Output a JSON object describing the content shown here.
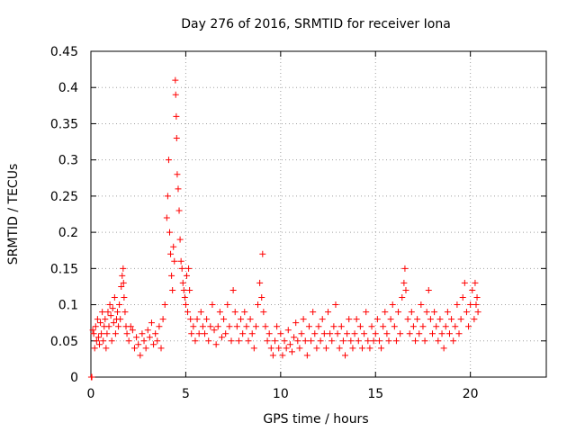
{
  "chart_data": {
    "type": "scatter",
    "title": "Day 276 of 2016, SRMTID for receiver Iona",
    "xlabel": "GPS time / hours",
    "ylabel": "SRMTID / TECUs",
    "xlim": [
      0,
      24
    ],
    "ylim": [
      0,
      0.45
    ],
    "xticks": [
      0,
      5,
      10,
      15,
      20
    ],
    "xtick_labels": [
      "0",
      "5",
      "10",
      "15",
      "20"
    ],
    "yticks": [
      0,
      0.05,
      0.1,
      0.15,
      0.2,
      0.25,
      0.3,
      0.35,
      0.4,
      0.45
    ],
    "ytick_labels": [
      "0",
      "0.05",
      "0.1",
      "0.15",
      "0.2",
      "0.25",
      "0.3",
      "0.35",
      "0.4",
      "0.45"
    ],
    "grid": true,
    "marker": "plus",
    "color": "#ff0000",
    "series": [
      {
        "name": "SRMTID",
        "points": [
          [
            0.02,
            0.0
          ],
          [
            0.05,
            0.0
          ],
          [
            0.1,
            0.065
          ],
          [
            0.15,
            0.06
          ],
          [
            0.2,
            0.04
          ],
          [
            0.25,
            0.07
          ],
          [
            0.3,
            0.05
          ],
          [
            0.35,
            0.08
          ],
          [
            0.4,
            0.055
          ],
          [
            0.45,
            0.045
          ],
          [
            0.5,
            0.075
          ],
          [
            0.55,
            0.06
          ],
          [
            0.6,
            0.09
          ],
          [
            0.65,
            0.05
          ],
          [
            0.7,
            0.07
          ],
          [
            0.75,
            0.08
          ],
          [
            0.8,
            0.04
          ],
          [
            0.85,
            0.06
          ],
          [
            0.9,
            0.09
          ],
          [
            0.95,
            0.07
          ],
          [
            1.0,
            0.1
          ],
          [
            1.05,
            0.085
          ],
          [
            1.1,
            0.05
          ],
          [
            1.15,
            0.095
          ],
          [
            1.2,
            0.075
          ],
          [
            1.25,
            0.11
          ],
          [
            1.3,
            0.06
          ],
          [
            1.35,
            0.08
          ],
          [
            1.4,
            0.09
          ],
          [
            1.45,
            0.07
          ],
          [
            1.5,
            0.1
          ],
          [
            1.55,
            0.08
          ],
          [
            1.6,
            0.125
          ],
          [
            1.65,
            0.14
          ],
          [
            1.7,
            0.15
          ],
          [
            1.72,
            0.13
          ],
          [
            1.75,
            0.11
          ],
          [
            1.8,
            0.09
          ],
          [
            1.85,
            0.07
          ],
          [
            1.9,
            0.06
          ],
          [
            2.0,
            0.05
          ],
          [
            2.1,
            0.07
          ],
          [
            2.2,
            0.065
          ],
          [
            2.3,
            0.04
          ],
          [
            2.4,
            0.055
          ],
          [
            2.5,
            0.045
          ],
          [
            2.6,
            0.03
          ],
          [
            2.7,
            0.06
          ],
          [
            2.8,
            0.05
          ],
          [
            2.9,
            0.04
          ],
          [
            3.0,
            0.065
          ],
          [
            3.1,
            0.055
          ],
          [
            3.2,
            0.075
          ],
          [
            3.3,
            0.045
          ],
          [
            3.4,
            0.06
          ],
          [
            3.5,
            0.05
          ],
          [
            3.6,
            0.07
          ],
          [
            3.7,
            0.04
          ],
          [
            3.8,
            0.08
          ],
          [
            3.9,
            0.1
          ],
          [
            4.0,
            0.22
          ],
          [
            4.05,
            0.25
          ],
          [
            4.1,
            0.3
          ],
          [
            4.15,
            0.2
          ],
          [
            4.2,
            0.17
          ],
          [
            4.25,
            0.14
          ],
          [
            4.3,
            0.12
          ],
          [
            4.35,
            0.18
          ],
          [
            4.4,
            0.16
          ],
          [
            4.45,
            0.41
          ],
          [
            4.47,
            0.39
          ],
          [
            4.5,
            0.36
          ],
          [
            4.52,
            0.33
          ],
          [
            4.55,
            0.28
          ],
          [
            4.6,
            0.26
          ],
          [
            4.65,
            0.23
          ],
          [
            4.7,
            0.19
          ],
          [
            4.75,
            0.16
          ],
          [
            4.8,
            0.15
          ],
          [
            4.85,
            0.13
          ],
          [
            4.9,
            0.12
          ],
          [
            4.95,
            0.11
          ],
          [
            5.0,
            0.1
          ],
          [
            5.05,
            0.14
          ],
          [
            5.1,
            0.09
          ],
          [
            5.15,
            0.15
          ],
          [
            5.2,
            0.12
          ],
          [
            5.25,
            0.08
          ],
          [
            5.3,
            0.06
          ],
          [
            5.4,
            0.07
          ],
          [
            5.5,
            0.05
          ],
          [
            5.6,
            0.08
          ],
          [
            5.7,
            0.06
          ],
          [
            5.8,
            0.09
          ],
          [
            5.9,
            0.07
          ],
          [
            6.0,
            0.06
          ],
          [
            6.1,
            0.08
          ],
          [
            6.2,
            0.05
          ],
          [
            6.3,
            0.07
          ],
          [
            6.4,
            0.1
          ],
          [
            6.5,
            0.065
          ],
          [
            6.6,
            0.045
          ],
          [
            6.7,
            0.07
          ],
          [
            6.8,
            0.09
          ],
          [
            6.9,
            0.055
          ],
          [
            7.0,
            0.08
          ],
          [
            7.1,
            0.06
          ],
          [
            7.2,
            0.1
          ],
          [
            7.3,
            0.07
          ],
          [
            7.4,
            0.05
          ],
          [
            7.5,
            0.12
          ],
          [
            7.6,
            0.09
          ],
          [
            7.7,
            0.07
          ],
          [
            7.8,
            0.05
          ],
          [
            7.9,
            0.08
          ],
          [
            8.0,
            0.06
          ],
          [
            8.1,
            0.09
          ],
          [
            8.2,
            0.07
          ],
          [
            8.3,
            0.05
          ],
          [
            8.4,
            0.08
          ],
          [
            8.5,
            0.06
          ],
          [
            8.6,
            0.04
          ],
          [
            8.7,
            0.07
          ],
          [
            8.8,
            0.1
          ],
          [
            8.9,
            0.13
          ],
          [
            9.0,
            0.11
          ],
          [
            9.05,
            0.17
          ],
          [
            9.1,
            0.09
          ],
          [
            9.2,
            0.07
          ],
          [
            9.3,
            0.05
          ],
          [
            9.4,
            0.06
          ],
          [
            9.5,
            0.04
          ],
          [
            9.6,
            0.03
          ],
          [
            9.7,
            0.05
          ],
          [
            9.8,
            0.07
          ],
          [
            9.9,
            0.04
          ],
          [
            10.0,
            0.06
          ],
          [
            10.1,
            0.03
          ],
          [
            10.2,
            0.05
          ],
          [
            10.3,
            0.04
          ],
          [
            10.4,
            0.065
          ],
          [
            10.5,
            0.045
          ],
          [
            10.6,
            0.035
          ],
          [
            10.7,
            0.055
          ],
          [
            10.8,
            0.075
          ],
          [
            10.9,
            0.05
          ],
          [
            11.0,
            0.04
          ],
          [
            11.1,
            0.06
          ],
          [
            11.2,
            0.08
          ],
          [
            11.3,
            0.05
          ],
          [
            11.4,
            0.03
          ],
          [
            11.5,
            0.07
          ],
          [
            11.6,
            0.05
          ],
          [
            11.7,
            0.09
          ],
          [
            11.8,
            0.06
          ],
          [
            11.9,
            0.04
          ],
          [
            12.0,
            0.07
          ],
          [
            12.1,
            0.05
          ],
          [
            12.2,
            0.08
          ],
          [
            12.3,
            0.06
          ],
          [
            12.4,
            0.04
          ],
          [
            12.5,
            0.09
          ],
          [
            12.6,
            0.06
          ],
          [
            12.7,
            0.05
          ],
          [
            12.8,
            0.07
          ],
          [
            12.9,
            0.1
          ],
          [
            13.0,
            0.06
          ],
          [
            13.1,
            0.04
          ],
          [
            13.2,
            0.07
          ],
          [
            13.3,
            0.05
          ],
          [
            13.4,
            0.03
          ],
          [
            13.5,
            0.06
          ],
          [
            13.6,
            0.08
          ],
          [
            13.7,
            0.05
          ],
          [
            13.8,
            0.04
          ],
          [
            13.9,
            0.06
          ],
          [
            14.0,
            0.08
          ],
          [
            14.1,
            0.05
          ],
          [
            14.2,
            0.07
          ],
          [
            14.3,
            0.04
          ],
          [
            14.4,
            0.06
          ],
          [
            14.5,
            0.09
          ],
          [
            14.6,
            0.05
          ],
          [
            14.7,
            0.04
          ],
          [
            14.8,
            0.07
          ],
          [
            14.9,
            0.05
          ],
          [
            15.0,
            0.06
          ],
          [
            15.1,
            0.08
          ],
          [
            15.2,
            0.05
          ],
          [
            15.3,
            0.04
          ],
          [
            15.4,
            0.07
          ],
          [
            15.5,
            0.09
          ],
          [
            15.6,
            0.06
          ],
          [
            15.7,
            0.05
          ],
          [
            15.8,
            0.08
          ],
          [
            15.9,
            0.1
          ],
          [
            16.0,
            0.07
          ],
          [
            16.1,
            0.05
          ],
          [
            16.2,
            0.09
          ],
          [
            16.3,
            0.06
          ],
          [
            16.4,
            0.11
          ],
          [
            16.5,
            0.13
          ],
          [
            16.55,
            0.15
          ],
          [
            16.6,
            0.12
          ],
          [
            16.7,
            0.08
          ],
          [
            16.8,
            0.06
          ],
          [
            16.9,
            0.09
          ],
          [
            17.0,
            0.07
          ],
          [
            17.1,
            0.05
          ],
          [
            17.2,
            0.08
          ],
          [
            17.3,
            0.06
          ],
          [
            17.4,
            0.1
          ],
          [
            17.5,
            0.07
          ],
          [
            17.6,
            0.05
          ],
          [
            17.7,
            0.09
          ],
          [
            17.8,
            0.12
          ],
          [
            17.9,
            0.08
          ],
          [
            18.0,
            0.06
          ],
          [
            18.1,
            0.09
          ],
          [
            18.2,
            0.07
          ],
          [
            18.3,
            0.05
          ],
          [
            18.4,
            0.08
          ],
          [
            18.5,
            0.06
          ],
          [
            18.6,
            0.04
          ],
          [
            18.7,
            0.07
          ],
          [
            18.8,
            0.09
          ],
          [
            18.9,
            0.06
          ],
          [
            19.0,
            0.08
          ],
          [
            19.1,
            0.05
          ],
          [
            19.2,
            0.07
          ],
          [
            19.3,
            0.1
          ],
          [
            19.4,
            0.06
          ],
          [
            19.5,
            0.08
          ],
          [
            19.6,
            0.11
          ],
          [
            19.7,
            0.13
          ],
          [
            19.8,
            0.09
          ],
          [
            19.9,
            0.07
          ],
          [
            20.0,
            0.1
          ],
          [
            20.1,
            0.12
          ],
          [
            20.2,
            0.08
          ],
          [
            20.25,
            0.13
          ],
          [
            20.3,
            0.1
          ],
          [
            20.35,
            0.11
          ],
          [
            20.4,
            0.09
          ]
        ]
      }
    ]
  }
}
